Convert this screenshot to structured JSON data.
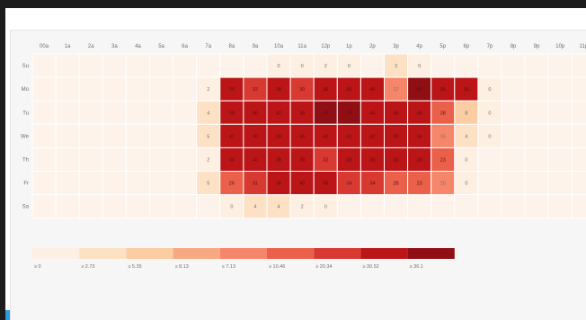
{
  "chart_data": {
    "type": "heatmap",
    "title": "",
    "xlabel": "",
    "ylabel": "",
    "x": [
      "00a",
      "1a",
      "2a",
      "3a",
      "4a",
      "5a",
      "6a",
      "7a",
      "8a",
      "9a",
      "10a",
      "11a",
      "12p",
      "1p",
      "2p",
      "3p",
      "4p",
      "5p",
      "6p",
      "7p",
      "8p",
      "9p",
      "10p",
      "11p"
    ],
    "y": [
      "Su",
      "Mo",
      "Tu",
      "We",
      "Th",
      "Fr",
      "Sa"
    ],
    "values": [
      [
        null,
        null,
        null,
        null,
        null,
        null,
        null,
        null,
        null,
        null,
        0,
        0,
        2,
        0,
        null,
        3,
        0,
        null,
        null,
        null,
        null,
        null,
        null,
        null
      ],
      [
        null,
        null,
        null,
        null,
        null,
        null,
        null,
        2,
        36,
        32,
        38,
        30,
        36,
        36,
        40,
        17,
        48,
        36,
        36,
        0,
        null,
        null,
        null,
        null
      ],
      [
        null,
        null,
        null,
        null,
        null,
        null,
        null,
        4,
        38,
        40,
        42,
        38,
        44,
        78,
        40,
        38,
        36,
        28,
        8,
        0,
        null,
        null,
        null,
        null
      ],
      [
        null,
        null,
        null,
        null,
        null,
        null,
        null,
        5,
        41,
        40,
        38,
        36,
        40,
        42,
        42,
        38,
        36,
        15,
        4,
        0,
        null,
        null,
        null,
        null
      ],
      [
        null,
        null,
        null,
        null,
        null,
        null,
        null,
        2,
        38,
        40,
        38,
        38,
        32,
        38,
        38,
        38,
        38,
        23,
        0,
        null,
        null,
        null,
        null,
        null
      ],
      [
        null,
        null,
        null,
        null,
        null,
        null,
        null,
        5,
        26,
        31,
        36,
        40,
        36,
        34,
        34,
        28,
        23,
        15,
        0,
        null,
        null,
        null,
        null,
        null
      ],
      [
        null,
        null,
        null,
        null,
        null,
        null,
        null,
        null,
        0,
        4,
        4,
        2,
        0,
        null,
        null,
        null,
        null,
        null,
        null,
        null,
        null,
        null,
        null,
        null
      ]
    ],
    "legend": {
      "placement": "bottom-left",
      "bins": [
        {
          "label": "≥ 0",
          "color": "#fdefe2"
        },
        {
          "label": "≥ 2.73",
          "color": "#fde1c4"
        },
        {
          "label": "≥ 5.35",
          "color": "#fccca2"
        },
        {
          "label": "≥ 8.13",
          "color": "#f8a983"
        },
        {
          "label": "≥ 7.13",
          "color": "#f5866a"
        },
        {
          "label": "≥ 10.46",
          "color": "#ea604b"
        },
        {
          "label": "≥ 20.34",
          "color": "#d83a32"
        },
        {
          "label": "≥ 30.52",
          "color": "#bb1518"
        },
        {
          "label": "≥ 36.1",
          "color": "#8f0f14"
        }
      ]
    }
  }
}
